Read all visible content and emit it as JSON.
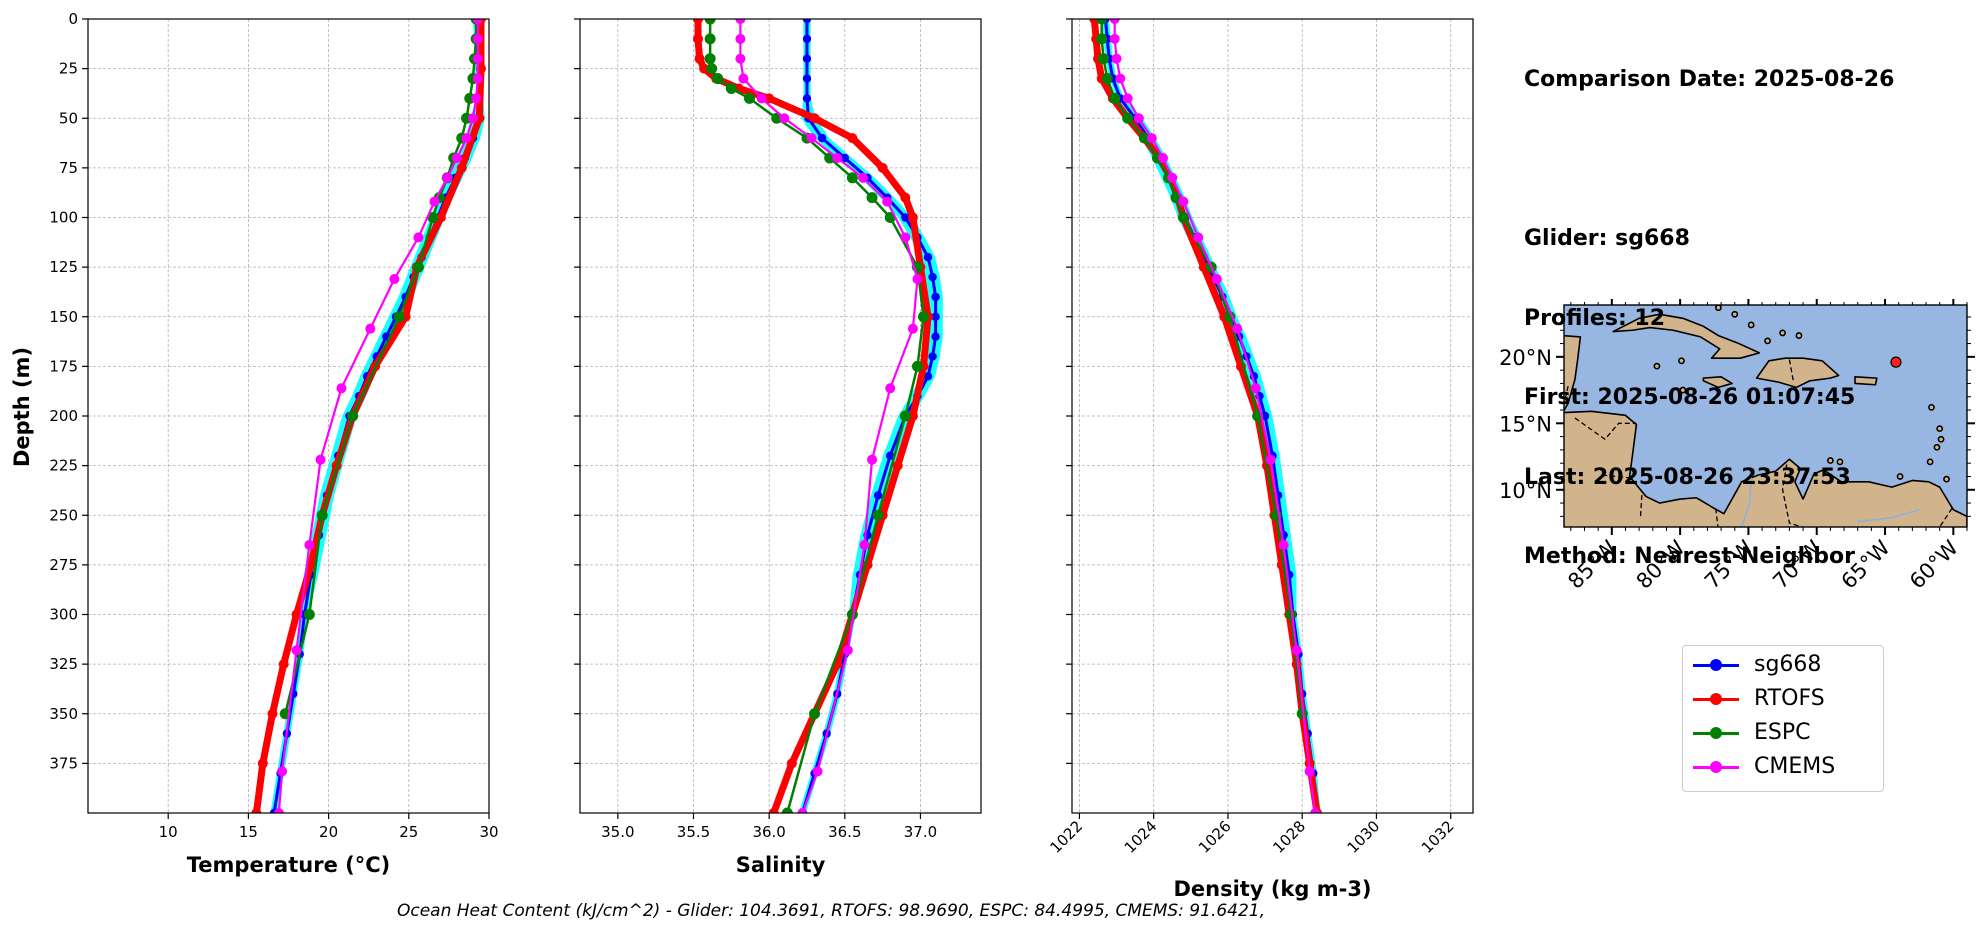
{
  "info": {
    "lines": [
      "Comparison Date: 2025-08-26",
      "",
      "Glider: sg668",
      "Profiles: 12",
      "First: 2025-08-26 01:07:45",
      "Last: 2025-08-26 23:37:53",
      "Method: Nearest-Neighbor"
    ]
  },
  "footer": "Ocean Heat Content (kJ/cm^2) - Glider: 104.3691,  RTOFS: 98.9690,  ESPC: 84.4995,  CMEMS: 91.6421,",
  "colors": {
    "sg668": "#0000ff",
    "sg668_spread": "#00ffff",
    "RTOFS": "#ff0000",
    "ESPC": "#008000",
    "CMEMS": "#ff00ff",
    "ocean": "#97b6e1",
    "land": "#d1b48b",
    "grid": "#b0b0b0"
  },
  "legend": [
    {
      "label": "sg668",
      "color": "#0000ff"
    },
    {
      "label": "RTOFS",
      "color": "#ff0000"
    },
    {
      "label": "ESPC",
      "color": "#008000"
    },
    {
      "label": "CMEMS",
      "color": "#ff00ff"
    }
  ],
  "shared": {
    "ylabel": "Depth (m)",
    "ylim": [
      400,
      0
    ],
    "yticks": [
      0,
      25,
      50,
      75,
      100,
      125,
      150,
      175,
      200,
      225,
      250,
      275,
      300,
      325,
      350,
      375
    ]
  },
  "chart_data": [
    {
      "type": "line",
      "id": "temperature",
      "xlabel": "Temperature (°C)",
      "xlim": [
        5,
        30
      ],
      "xticks": [
        10,
        15,
        20,
        25,
        30
      ],
      "xtick_labels": [
        "10",
        "15",
        "20",
        "25",
        "30"
      ],
      "grid": true,
      "series": [
        {
          "name": "sg668",
          "depth": [
            0,
            10,
            20,
            30,
            40,
            50,
            60,
            70,
            80,
            90,
            100,
            110,
            120,
            130,
            140,
            150,
            160,
            170,
            180,
            190,
            200,
            220,
            240,
            260,
            280,
            300,
            320,
            340,
            360,
            380,
            400
          ],
          "values": [
            29.2,
            29.3,
            29.3,
            29.4,
            29.4,
            29.3,
            29.0,
            28.5,
            27.9,
            27.3,
            26.8,
            26.3,
            25.8,
            25.3,
            24.8,
            24.2,
            23.6,
            23.0,
            22.4,
            21.9,
            21.3,
            20.6,
            19.9,
            19.4,
            18.9,
            18.5,
            18.2,
            17.8,
            17.4,
            17.0,
            16.6
          ]
        },
        {
          "name": "RTOFS",
          "depth": [
            0,
            25,
            50,
            75,
            100,
            125,
            150,
            175,
            200,
            225,
            250,
            275,
            300,
            325,
            350,
            375,
            400
          ],
          "values": [
            29.5,
            29.5,
            29.4,
            28.3,
            27.0,
            25.5,
            24.8,
            22.9,
            21.5,
            20.5,
            19.6,
            18.9,
            18.0,
            17.2,
            16.5,
            15.9,
            15.5
          ]
        },
        {
          "name": "ESPC",
          "depth": [
            0,
            10,
            20,
            30,
            40,
            50,
            60,
            70,
            80,
            90,
            100,
            125,
            150,
            200,
            250,
            300,
            350
          ],
          "values": [
            29.2,
            29.2,
            29.1,
            29.0,
            28.8,
            28.6,
            28.3,
            27.8,
            27.4,
            26.9,
            26.5,
            25.6,
            24.4,
            21.5,
            19.6,
            18.8,
            17.3
          ]
        },
        {
          "name": "CMEMS",
          "depth": [
            0,
            10,
            20,
            30,
            40,
            50,
            60,
            70,
            80,
            92,
            110,
            131,
            156,
            186,
            222,
            265,
            318,
            379,
            400
          ],
          "values": [
            29.3,
            29.3,
            29.3,
            29.3,
            29.2,
            29.0,
            28.6,
            28.0,
            27.4,
            26.6,
            25.6,
            24.1,
            22.6,
            20.8,
            19.5,
            18.8,
            18.0,
            17.1,
            16.9
          ]
        }
      ]
    },
    {
      "type": "line",
      "id": "salinity",
      "xlabel": "Salinity",
      "xlim": [
        34.75,
        37.4
      ],
      "xticks": [
        35.0,
        35.5,
        36.0,
        36.5,
        37.0
      ],
      "xtick_labels": [
        "35.0",
        "35.5",
        "36.0",
        "36.5",
        "37.0"
      ],
      "grid": true,
      "series": [
        {
          "name": "sg668",
          "depth": [
            0,
            10,
            20,
            30,
            40,
            50,
            60,
            70,
            80,
            90,
            100,
            110,
            120,
            130,
            140,
            150,
            160,
            170,
            180,
            190,
            200,
            220,
            240,
            260,
            280,
            300,
            320,
            340,
            360,
            380,
            400
          ],
          "values": [
            36.25,
            36.25,
            36.25,
            36.25,
            36.25,
            36.26,
            36.35,
            36.5,
            36.65,
            36.78,
            36.9,
            36.98,
            37.05,
            37.08,
            37.1,
            37.1,
            37.1,
            37.08,
            37.05,
            36.98,
            36.9,
            36.8,
            36.72,
            36.65,
            36.6,
            36.55,
            36.5,
            36.45,
            36.38,
            36.3,
            36.22
          ]
        },
        {
          "name": "RTOFS",
          "depth": [
            0,
            10,
            20,
            25,
            30,
            35,
            40,
            50,
            60,
            75,
            90,
            100,
            125,
            150,
            175,
            200,
            225,
            250,
            275,
            300,
            325,
            350,
            375,
            400
          ],
          "values": [
            35.53,
            35.53,
            35.54,
            35.57,
            35.65,
            35.8,
            36.0,
            36.3,
            36.55,
            36.75,
            36.9,
            36.95,
            37.0,
            37.05,
            37.02,
            36.95,
            36.85,
            36.75,
            36.65,
            36.55,
            36.45,
            36.3,
            36.15,
            36.03
          ]
        },
        {
          "name": "ESPC",
          "depth": [
            0,
            10,
            20,
            25,
            30,
            35,
            40,
            50,
            60,
            70,
            80,
            90,
            100,
            125,
            150,
            175,
            200,
            250,
            300,
            350,
            400
          ],
          "values": [
            35.61,
            35.61,
            35.61,
            35.62,
            35.66,
            35.75,
            35.87,
            36.05,
            36.25,
            36.4,
            36.55,
            36.68,
            36.8,
            36.98,
            37.02,
            36.98,
            36.9,
            36.72,
            36.55,
            36.3,
            36.12
          ]
        },
        {
          "name": "CMEMS",
          "depth": [
            0,
            10,
            20,
            30,
            40,
            50,
            60,
            70,
            80,
            92,
            110,
            131,
            156,
            186,
            222,
            265,
            318,
            379,
            400
          ],
          "values": [
            35.81,
            35.81,
            35.81,
            35.83,
            35.95,
            36.1,
            36.28,
            36.45,
            36.62,
            36.78,
            36.9,
            36.98,
            36.95,
            36.8,
            36.68,
            36.63,
            36.52,
            36.32,
            36.22
          ]
        }
      ]
    },
    {
      "type": "line",
      "id": "density",
      "xlabel": "Density (kg m-3)",
      "xlim": [
        1021.8,
        1032.6
      ],
      "xticks": [
        1022,
        1024,
        1026,
        1028,
        1030,
        1032
      ],
      "xtick_labels": [
        "1022",
        "1024",
        "1026",
        "1028",
        "1030",
        "1032"
      ],
      "grid": true,
      "series": [
        {
          "name": "sg668",
          "depth": [
            0,
            10,
            20,
            30,
            40,
            50,
            60,
            70,
            80,
            90,
            100,
            110,
            120,
            130,
            140,
            150,
            160,
            170,
            180,
            190,
            200,
            220,
            240,
            260,
            280,
            300,
            320,
            340,
            360,
            380,
            400
          ],
          "values": [
            1022.7,
            1022.75,
            1022.8,
            1022.9,
            1023.1,
            1023.5,
            1023.85,
            1024.15,
            1024.4,
            1024.65,
            1024.85,
            1025.1,
            1025.35,
            1025.6,
            1025.85,
            1026.05,
            1026.3,
            1026.5,
            1026.7,
            1026.85,
            1027.0,
            1027.2,
            1027.35,
            1027.5,
            1027.65,
            1027.75,
            1027.9,
            1028.0,
            1028.15,
            1028.3,
            1028.4
          ]
        },
        {
          "name": "RTOFS",
          "depth": [
            0,
            10,
            20,
            30,
            40,
            50,
            60,
            70,
            80,
            90,
            100,
            125,
            150,
            175,
            200,
            225,
            250,
            275,
            300,
            325,
            350,
            375,
            400
          ],
          "values": [
            1022.4,
            1022.45,
            1022.5,
            1022.6,
            1022.9,
            1023.3,
            1023.75,
            1024.15,
            1024.45,
            1024.65,
            1024.8,
            1025.35,
            1025.9,
            1026.35,
            1026.8,
            1027.05,
            1027.25,
            1027.45,
            1027.65,
            1027.85,
            1028.0,
            1028.2,
            1028.4
          ]
        },
        {
          "name": "ESPC",
          "depth": [
            0,
            10,
            20,
            30,
            40,
            50,
            60,
            70,
            80,
            90,
            100,
            125,
            150,
            200,
            250,
            300,
            350
          ],
          "values": [
            1022.6,
            1022.6,
            1022.65,
            1022.75,
            1022.95,
            1023.3,
            1023.75,
            1024.1,
            1024.4,
            1024.6,
            1024.8,
            1025.55,
            1026.05,
            1026.8,
            1027.3,
            1027.7,
            1028.0
          ]
        },
        {
          "name": "CMEMS",
          "depth": [
            0,
            10,
            20,
            30,
            40,
            50,
            60,
            70,
            80,
            92,
            110,
            131,
            156,
            186,
            222,
            265,
            318,
            379,
            400
          ],
          "values": [
            1022.95,
            1022.95,
            1023.0,
            1023.1,
            1023.3,
            1023.6,
            1023.95,
            1024.25,
            1024.5,
            1024.8,
            1025.2,
            1025.7,
            1026.25,
            1026.75,
            1027.15,
            1027.5,
            1027.85,
            1028.2,
            1028.35
          ]
        }
      ]
    }
  ],
  "map": {
    "lon_range": [
      -88.5,
      -59.0
    ],
    "lat_range": [
      7.2,
      23.9
    ],
    "lon_labels": [
      "85°W",
      "80°W",
      "75°W",
      "70°W",
      "65°W",
      "60°W"
    ],
    "lat_labels": [
      "20°N",
      "15°N",
      "10°N"
    ],
    "glider_position": {
      "lon": -64.2,
      "lat": 19.6
    }
  }
}
